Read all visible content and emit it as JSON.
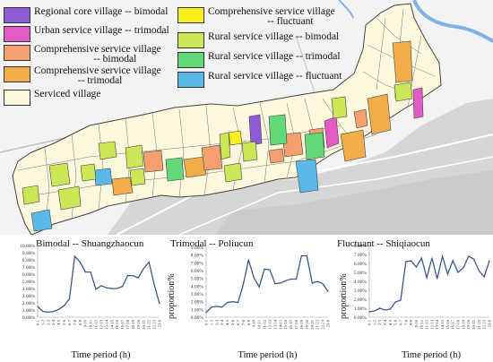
{
  "legend": {
    "items": [
      {
        "label": "Regional core village -- bimodal",
        "color": "#8e5bd6"
      },
      {
        "label": "Urban service village -- trimodal",
        "color": "#e25bc4"
      },
      {
        "label": "Comprehensive service village\n                       -- bimodal",
        "color": "#f4a06e"
      },
      {
        "label": "Comprehensive service village\n                 -- trimodal",
        "color": "#f0ad4a"
      },
      {
        "label": "Serviced village",
        "color": "#fdf7dd"
      },
      {
        "label": "Comprehensive service village\n                       -- fluctuant",
        "color": "#f7ef1e"
      },
      {
        "label": "Rural service village -- bimodal",
        "color": "#c9e757"
      },
      {
        "label": "Rural service village -- trimodal",
        "color": "#62d978"
      },
      {
        "label": "Rural service village -- fluctuant",
        "color": "#5bb8ea"
      }
    ]
  },
  "chart_data": [
    {
      "type": "line",
      "title": "Bimodal -- Shuangzhaocun",
      "xlabel": "Time period (h)",
      "ylabel": "proportion%",
      "x": [
        "0-1",
        "1-2",
        "2-3",
        "3-4",
        "4-5",
        "5-6",
        "6-7",
        "7-8",
        "8-9",
        "9-10",
        "10-11",
        "11-12",
        "12-13",
        "13-14",
        "14-15",
        "15-16",
        "16-17",
        "17-18",
        "18-19",
        "19-20",
        "20-21",
        "21-22",
        "22-23",
        "23-0"
      ],
      "y_ticks": [
        "0.00%",
        "1.00%",
        "2.00%",
        "3.00%",
        "4.00%",
        "5.00%",
        "6.00%",
        "7.00%",
        "8.00%",
        "9.00%",
        "10.00%"
      ],
      "ylim": [
        0,
        10
      ],
      "values": [
        1.5,
        0.8,
        0.7,
        0.8,
        1.1,
        1.6,
        2.6,
        8.5,
        7.7,
        6.3,
        6.3,
        3.9,
        4.4,
        4.1,
        4.0,
        4.0,
        4.3,
        5.8,
        5.8,
        5.5,
        6.8,
        7.7,
        4.5,
        1.9
      ],
      "color": "#3a5a8c"
    },
    {
      "type": "line",
      "title": "Trimodal -- Poliucun",
      "xlabel": "Time period (h)",
      "ylabel": "proportion%",
      "x": [
        "0-1",
        "1-2",
        "2-3",
        "3-4",
        "4-5",
        "5-6",
        "6-7",
        "7-8",
        "8-9",
        "9-10",
        "10-11",
        "11-12",
        "12-13",
        "13-14",
        "14-15",
        "15-16",
        "16-17",
        "17-18",
        "18-19",
        "19-20",
        "20-21",
        "21-22",
        "22-23",
        "23-0"
      ],
      "y_ticks": [
        "0.00%",
        "1.00%",
        "2.00%",
        "3.00%",
        "4.00%",
        "5.00%",
        "6.00%",
        "7.00%",
        "8.00%",
        "9.00%"
      ],
      "ylim": [
        0,
        9
      ],
      "values": [
        0.6,
        1.3,
        1.4,
        1.3,
        1.9,
        2.0,
        1.9,
        4.2,
        7.4,
        5.1,
        3.9,
        6.2,
        6.1,
        4.3,
        4.4,
        4.7,
        4.9,
        4.9,
        7.9,
        7.9,
        4.4,
        4.6,
        4.3,
        3.3
      ],
      "color": "#3a5a8c"
    },
    {
      "type": "line",
      "title": "Fluctuant -- Shiqiaocun",
      "xlabel": "Time period (h)",
      "ylabel": "proportion%",
      "x": [
        "0-1",
        "1-2",
        "2-3",
        "3-4",
        "4-5",
        "5-6",
        "6-7",
        "7-8",
        "8-9",
        "9-10",
        "10-11",
        "11-12",
        "12-13",
        "13-14",
        "14-15",
        "15-16",
        "16-17",
        "17-18",
        "18-19",
        "19-20",
        "20-21",
        "21-22",
        "22-23",
        "23-0"
      ],
      "y_ticks": [
        "0.00%",
        "1.00%",
        "2.00%",
        "3.00%",
        "4.00%",
        "5.00%",
        "6.00%",
        "7.00%",
        "8.00%"
      ],
      "ylim": [
        0,
        8
      ],
      "values": [
        0.6,
        0.7,
        1.0,
        0.8,
        0.9,
        1.7,
        1.9,
        6.2,
        6.3,
        5.6,
        6.6,
        4.4,
        6.6,
        4.3,
        6.8,
        4.8,
        6.3,
        5.0,
        5.5,
        6.8,
        6.5,
        5.2,
        4.5,
        6.3
      ],
      "color": "#3a5a8c"
    }
  ]
}
